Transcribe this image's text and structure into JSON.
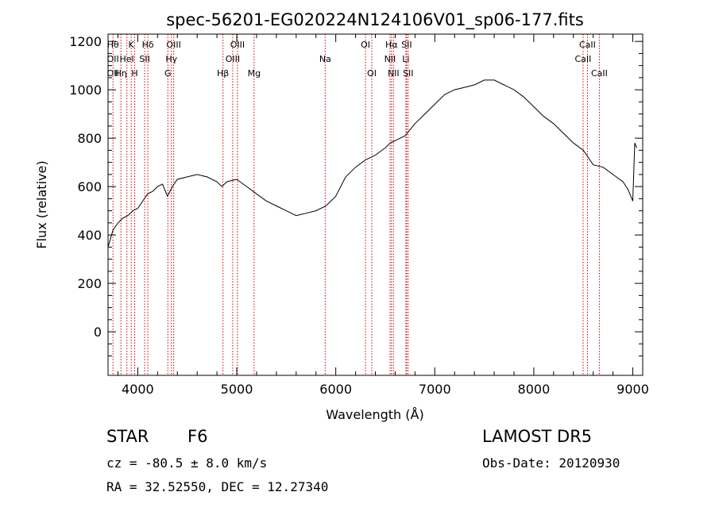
{
  "chart_data": {
    "type": "line",
    "title": "spec-56201-EG020224N124106V01_sp06-177.fits",
    "xlabel": "Wavelength (Å)",
    "ylabel": "Flux (relative)",
    "xlim": [
      3700,
      9100
    ],
    "ylim": [
      -180,
      1230
    ],
    "xticks": [
      4000,
      5000,
      6000,
      7000,
      8000,
      9000
    ],
    "yticks": [
      0,
      200,
      400,
      600,
      800,
      1000,
      1200
    ],
    "grid": false,
    "line_color": "#000000",
    "marker_color": "#cc0000",
    "series": [
      {
        "x": [
          3700,
          3750,
          3800,
          3850,
          3900,
          3950,
          4000,
          4050,
          4100,
          4150,
          4200,
          4250,
          4300,
          4350,
          4400,
          4500,
          4600,
          4700,
          4800,
          4850,
          4900,
          5000,
          5100,
          5200,
          5300,
          5400,
          5500,
          5600,
          5700,
          5800,
          5900,
          6000,
          6100,
          6200,
          6300,
          6400,
          6500,
          6550,
          6600,
          6700,
          6800,
          6900,
          7000,
          7100,
          7200,
          7300,
          7400,
          7500,
          7600,
          7700,
          7800,
          7900,
          8000,
          8100,
          8200,
          8300,
          8400,
          8500,
          8550,
          8600,
          8700,
          8800,
          8900,
          8950,
          9000,
          9020,
          9040
        ],
        "y": [
          350,
          420,
          450,
          470,
          480,
          500,
          510,
          540,
          570,
          580,
          600,
          610,
          560,
          600,
          630,
          640,
          650,
          640,
          620,
          600,
          620,
          630,
          600,
          570,
          540,
          520,
          500,
          480,
          490,
          500,
          520,
          560,
          640,
          680,
          710,
          730,
          760,
          780,
          790,
          810,
          860,
          900,
          940,
          980,
          1000,
          1010,
          1020,
          1040,
          1040,
          1020,
          1000,
          970,
          930,
          890,
          860,
          820,
          780,
          750,
          720,
          690,
          680,
          650,
          620,
          590,
          540,
          780,
          760
        ]
      }
    ],
    "lines": [
      {
        "x": 3750,
        "labels": [
          "Hθ",
          "OII",
          "OII"
        ]
      },
      {
        "x": 3830,
        "labels": [
          "",
          "",
          "Hη"
        ]
      },
      {
        "x": 3890,
        "labels": [
          "",
          "HeI",
          ""
        ]
      },
      {
        "x": 3934,
        "labels": [
          "K",
          "",
          ""
        ]
      },
      {
        "x": 3969,
        "labels": [
          "",
          "",
          "H"
        ]
      },
      {
        "x": 4070,
        "labels": [
          "",
          "SII",
          ""
        ]
      },
      {
        "x": 4102,
        "labels": [
          "Hδ",
          "",
          ""
        ]
      },
      {
        "x": 4304,
        "labels": [
          "",
          "",
          "G"
        ]
      },
      {
        "x": 4340,
        "labels": [
          "",
          "Hγ",
          ""
        ]
      },
      {
        "x": 4363,
        "labels": [
          "OIII",
          "",
          ""
        ]
      },
      {
        "x": 4861,
        "labels": [
          "",
          "",
          "Hβ"
        ]
      },
      {
        "x": 4959,
        "labels": [
          "",
          "OIII",
          ""
        ]
      },
      {
        "x": 5007,
        "labels": [
          "OIII",
          "",
          ""
        ]
      },
      {
        "x": 5175,
        "labels": [
          "",
          "",
          "Mg"
        ]
      },
      {
        "x": 5893,
        "labels": [
          "",
          "Na",
          ""
        ]
      },
      {
        "x": 6300,
        "labels": [
          "OI",
          "",
          ""
        ]
      },
      {
        "x": 6364,
        "labels": [
          "",
          "",
          "OI"
        ]
      },
      {
        "x": 6548,
        "labels": [
          "",
          "NII",
          ""
        ]
      },
      {
        "x": 6563,
        "labels": [
          "Hα",
          "",
          ""
        ]
      },
      {
        "x": 6583,
        "labels": [
          "",
          "",
          "NII"
        ]
      },
      {
        "x": 6708,
        "labels": [
          "",
          "Li",
          ""
        ]
      },
      {
        "x": 6716,
        "labels": [
          "SII",
          "",
          ""
        ]
      },
      {
        "x": 6731,
        "labels": [
          "",
          "",
          "SII"
        ]
      },
      {
        "x": 8498,
        "labels": [
          "",
          "CaII",
          ""
        ]
      },
      {
        "x": 8542,
        "labels": [
          "CaII",
          "",
          ""
        ]
      },
      {
        "x": 8662,
        "labels": [
          "",
          "",
          "CaII"
        ]
      }
    ]
  },
  "info": {
    "obj_class": "STAR",
    "subclass": "F6",
    "survey": "LAMOST DR5",
    "cz": "cz = -80.5 ± 8.0 km/s",
    "obs_date": "Obs-Date: 20120930",
    "radec": "RA =  32.52550, DEC =  12.27340"
  }
}
